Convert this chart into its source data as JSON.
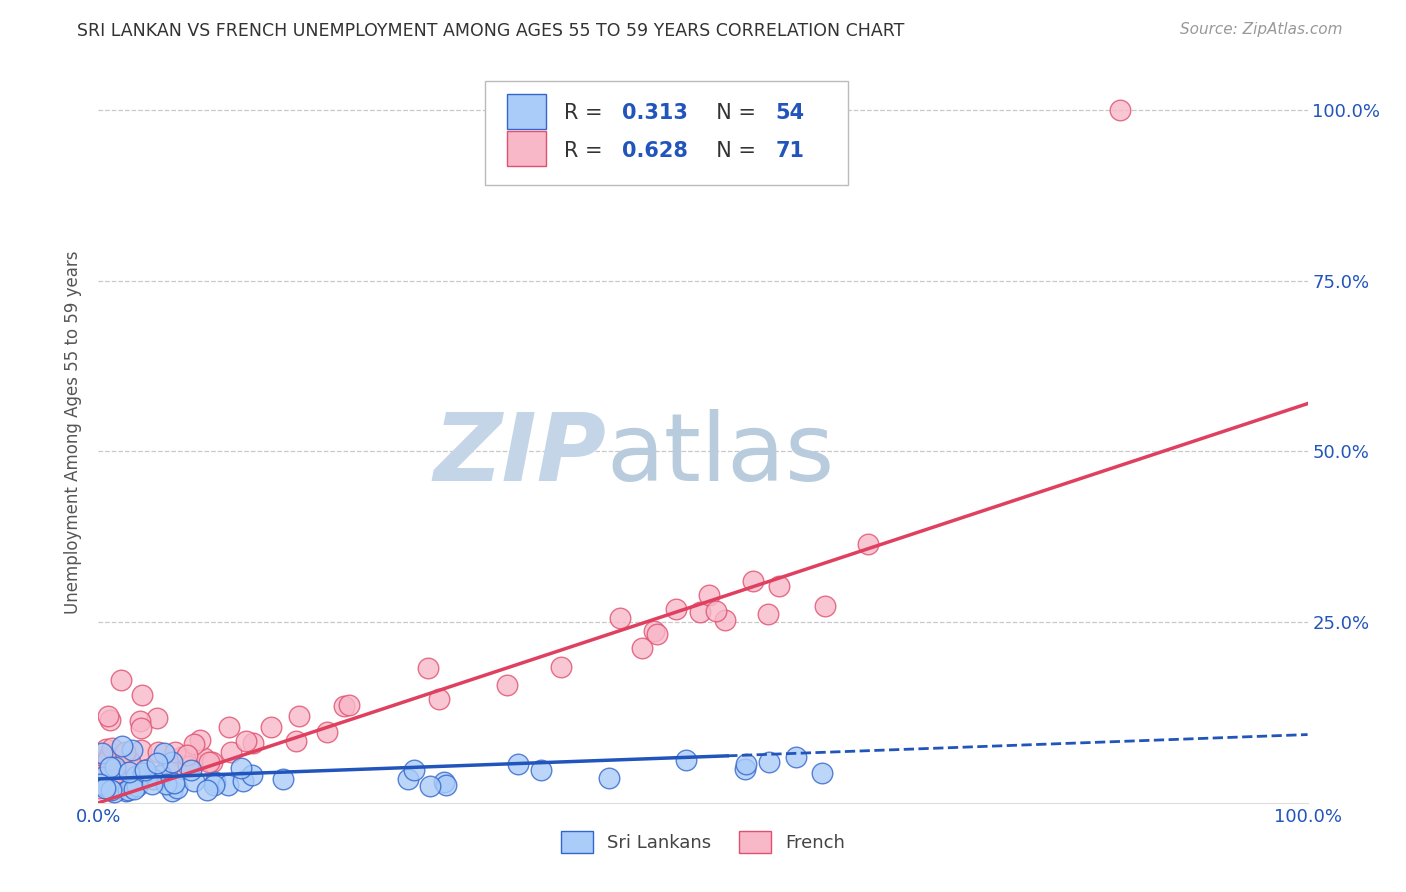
{
  "title": "SRI LANKAN VS FRENCH UNEMPLOYMENT AMONG AGES 55 TO 59 YEARS CORRELATION CHART",
  "source": "Source: ZipAtlas.com",
  "ylabel": "Unemployment Among Ages 55 to 59 years",
  "background_color": "#ffffff",
  "grid_color": "#c8c8c8",
  "sri_lanka_color": "#aaccf8",
  "french_color": "#f8b8c8",
  "sri_lanka_edge_color": "#3366cc",
  "french_edge_color": "#e05070",
  "sri_lanka_line_color": "#2255bb",
  "french_line_color": "#e04060",
  "sri_lanka_R": 0.313,
  "sri_lanka_N": 54,
  "french_R": 0.628,
  "french_N": 71,
  "legend_label_1": "Sri Lankans",
  "legend_label_2": "French",
  "number_color": "#2255bb",
  "title_color": "#333333",
  "source_color": "#999999",
  "tick_color": "#2255bb",
  "ylabel_color": "#555555",
  "watermark_zip_color": "#c5d5e8",
  "watermark_atlas_color": "#b8ccdd"
}
